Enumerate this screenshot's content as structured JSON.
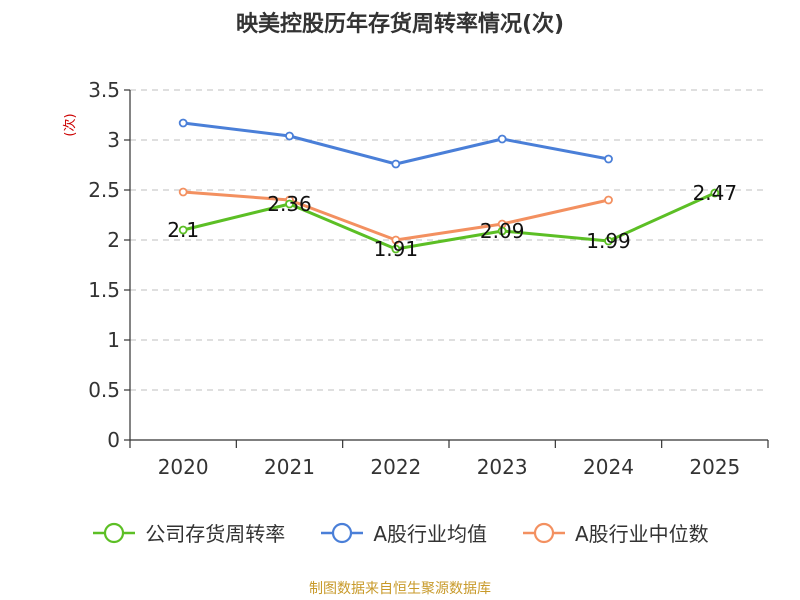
{
  "title": "映美控股历年存货周转率情况(次)",
  "source": "制图数据来自恒生聚源数据库",
  "chart_data": {
    "type": "line",
    "title": "映美控股历年存货周转率情况(次)",
    "xlabel": "",
    "ylabel": "(次)",
    "categories": [
      "2020",
      "2021",
      "2022",
      "2023",
      "2024",
      "2025"
    ],
    "ylim": [
      0,
      3.5
    ],
    "yticks": [
      0,
      0.5,
      1,
      1.5,
      2,
      2.5,
      3,
      3.5
    ],
    "ytick_labels": [
      "0",
      "0.5",
      "1",
      "1.5",
      "2",
      "2.5",
      "3",
      "3.5"
    ],
    "grid": true,
    "legend_position": "bottom",
    "series": [
      {
        "name": "公司存货周转率",
        "color": "#5cbf25",
        "values": [
          2.1,
          2.36,
          1.91,
          2.09,
          1.99,
          2.47
        ],
        "labels": [
          "2.1",
          "2.36",
          "1.91",
          "2.09",
          "1.99",
          "2.47"
        ]
      },
      {
        "name": "A股行业均值",
        "color": "#4a7fd8",
        "values": [
          3.17,
          3.04,
          2.76,
          3.01,
          2.81,
          null
        ]
      },
      {
        "name": "A股行业中位数",
        "color": "#f39060",
        "values": [
          2.48,
          2.4,
          2.0,
          2.16,
          2.4,
          null
        ]
      }
    ]
  }
}
